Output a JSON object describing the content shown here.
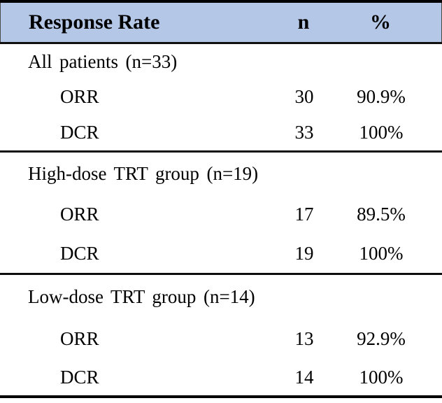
{
  "table": {
    "title_column": "Response Rate",
    "columns": [
      "Response Rate",
      "n",
      "%"
    ],
    "header_bg": "#b4c7e7",
    "border_color": "#000000",
    "sections": [
      {
        "label": "All patients (n=33)",
        "rows": [
          {
            "label": "ORR",
            "n": "30",
            "pct": "90.9%"
          },
          {
            "label": "DCR",
            "n": "33",
            "pct": "100%"
          }
        ]
      },
      {
        "label": "High-dose TRT group (n=19)",
        "rows": [
          {
            "label": "ORR",
            "n": "17",
            "pct": "89.5%"
          },
          {
            "label": "DCR",
            "n": "19",
            "pct": "100%"
          }
        ]
      },
      {
        "label": "Low-dose TRT group (n=14)",
        "rows": [
          {
            "label": "ORR",
            "n": "13",
            "pct": "92.9%"
          },
          {
            "label": "DCR",
            "n": "14",
            "pct": "100%"
          }
        ]
      }
    ]
  }
}
